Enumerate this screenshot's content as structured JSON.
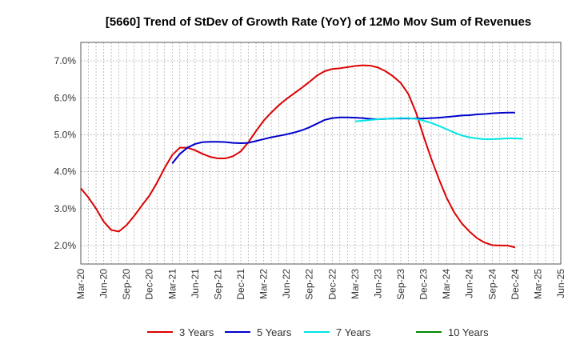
{
  "chart_data": {
    "type": "line",
    "title": "[5660]  Trend of StDev of Growth Rate (YoY) of 12Mo Mov Sum of Revenues",
    "xlabel": "",
    "ylabel": "",
    "ylim": [
      1.5,
      7.5
    ],
    "y_ticks": [
      2.0,
      3.0,
      4.0,
      5.0,
      6.0,
      7.0
    ],
    "y_tick_labels": [
      "2.0%",
      "3.0%",
      "4.0%",
      "5.0%",
      "6.0%",
      "7.0%"
    ],
    "x_tick_labels": [
      "Mar-20",
      "Jun-20",
      "Sep-20",
      "Dec-20",
      "Mar-21",
      "Jun-21",
      "Sep-21",
      "Dec-21",
      "Mar-22",
      "Jun-22",
      "Sep-22",
      "Dec-22",
      "Mar-23",
      "Jun-23",
      "Sep-23",
      "Dec-23",
      "Mar-24",
      "Jun-24",
      "Sep-24",
      "Dec-24",
      "Mar-25",
      "Jun-25"
    ],
    "x_count_months": 63,
    "grid": true,
    "legend_position": "bottom",
    "series": [
      {
        "name": "3 Years",
        "color": "#dd0000",
        "start_index": 0,
        "values": [
          3.55,
          3.3,
          3.0,
          2.65,
          2.42,
          2.38,
          2.55,
          2.8,
          3.08,
          3.35,
          3.7,
          4.1,
          4.45,
          4.65,
          4.65,
          4.58,
          4.48,
          4.4,
          4.36,
          4.36,
          4.42,
          4.55,
          4.8,
          5.1,
          5.38,
          5.6,
          5.8,
          5.97,
          6.12,
          6.27,
          6.43,
          6.6,
          6.72,
          6.78,
          6.8,
          6.83,
          6.86,
          6.88,
          6.87,
          6.82,
          6.72,
          6.58,
          6.4,
          6.1,
          5.6,
          4.95,
          4.35,
          3.8,
          3.3,
          2.9,
          2.6,
          2.38,
          2.2,
          2.08,
          2.01,
          2.0,
          2.0,
          1.95
        ]
      },
      {
        "name": "5 Years",
        "color": "#0000cc",
        "start_index": 12,
        "values": [
          4.22,
          4.48,
          4.65,
          4.75,
          4.8,
          4.81,
          4.81,
          4.8,
          4.78,
          4.77,
          4.78,
          4.83,
          4.88,
          4.93,
          4.97,
          5.01,
          5.06,
          5.12,
          5.2,
          5.3,
          5.4,
          5.45,
          5.47,
          5.47,
          5.46,
          5.45,
          5.43,
          5.42,
          5.43,
          5.44,
          5.44,
          5.44,
          5.44,
          5.44,
          5.45,
          5.46,
          5.48,
          5.5,
          5.52,
          5.53,
          5.55,
          5.56,
          5.58,
          5.59,
          5.6,
          5.6
        ]
      },
      {
        "name": "7 Years",
        "color": "#00e5e5",
        "start_index": 36,
        "values": [
          5.36,
          5.38,
          5.4,
          5.42,
          5.43,
          5.44,
          5.45,
          5.45,
          5.43,
          5.38,
          5.32,
          5.24,
          5.15,
          5.06,
          4.98,
          4.93,
          4.9,
          4.88,
          4.88,
          4.89,
          4.9,
          4.9,
          4.89
        ]
      },
      {
        "name": "10 Years",
        "color": "#008800",
        "start_index": 0,
        "values": []
      }
    ]
  }
}
